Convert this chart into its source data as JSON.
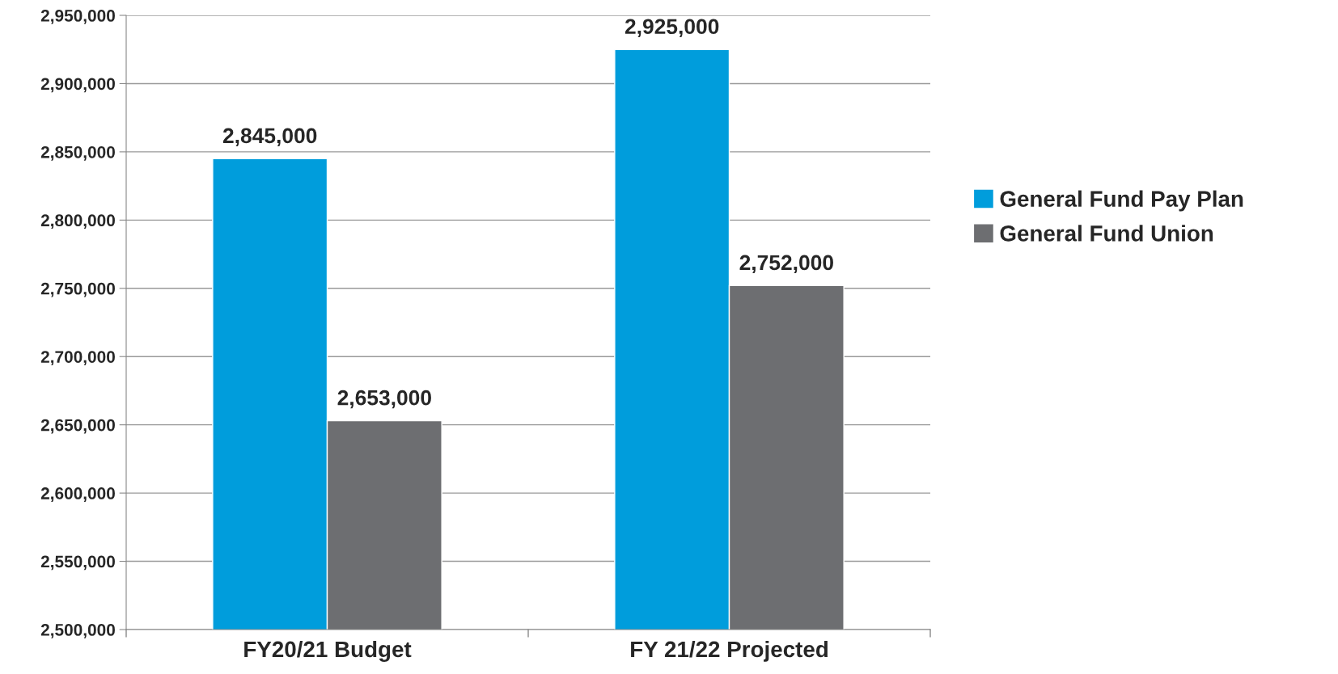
{
  "chart_data": {
    "type": "bar",
    "categories": [
      "FY20/21 Budget",
      "FY 21/22 Projected"
    ],
    "series": [
      {
        "name": "General Fund Pay Plan",
        "color": "#009ddc",
        "values": [
          2845000,
          2925000
        ],
        "value_labels": [
          "2,845,000",
          "2,925,000"
        ]
      },
      {
        "name": "General Fund Union",
        "color": "#6d6e71",
        "values": [
          2653000,
          2752000
        ],
        "value_labels": [
          "2,653,000",
          "2,752,000"
        ]
      }
    ],
    "ylim": [
      2500000,
      2950000
    ],
    "yticks": [
      {
        "value": 2500000,
        "label": "2,500,000"
      },
      {
        "value": 2550000,
        "label": "2,550,000"
      },
      {
        "value": 2600000,
        "label": "2,600,000"
      },
      {
        "value": 2650000,
        "label": "2,650,000"
      },
      {
        "value": 2700000,
        "label": "2,700,000"
      },
      {
        "value": 2750000,
        "label": "2,750,000"
      },
      {
        "value": 2800000,
        "label": "2,800,000"
      },
      {
        "value": 2850000,
        "label": "2,850,000"
      },
      {
        "value": 2900000,
        "label": "2,900,000"
      },
      {
        "value": 2950000,
        "label": "2,950,000"
      }
    ],
    "grid": "y",
    "legend": "right"
  }
}
